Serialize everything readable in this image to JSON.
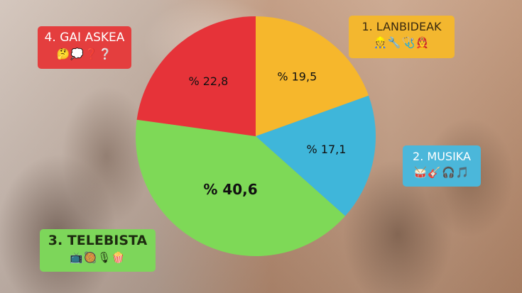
{
  "chart_data": {
    "type": "pie",
    "slices": [
      {
        "label": "1. LANBIDEAK",
        "value": 19.5,
        "text": "% 19,5",
        "color": "#f6b72c"
      },
      {
        "label": "2. MUSIKA",
        "value": 17.1,
        "text": "% 17,1",
        "color": "#3fb6da"
      },
      {
        "label": "3. TELEBISTA",
        "value": 40.6,
        "text": "% 40,6",
        "color": "#7ed957"
      },
      {
        "label": "4. GAI ASKEA",
        "value": 22.8,
        "text": "% 22,8",
        "color": "#e63339"
      }
    ]
  },
  "tags": {
    "lanbideak": {
      "title": "1. LANBIDEAK",
      "emoji": "👷🔧🩺👨‍🚒"
    },
    "musika": {
      "title": "2. MUSIKA",
      "emoji": "🥁🎸🎧🎵"
    },
    "telebista": {
      "title": "3. TELEBISTA",
      "emoji": "📺🥘🎙🍿"
    },
    "gai_askea": {
      "title": "4. GAI ASKEA",
      "emoji": "🤔💭❓❔"
    }
  }
}
